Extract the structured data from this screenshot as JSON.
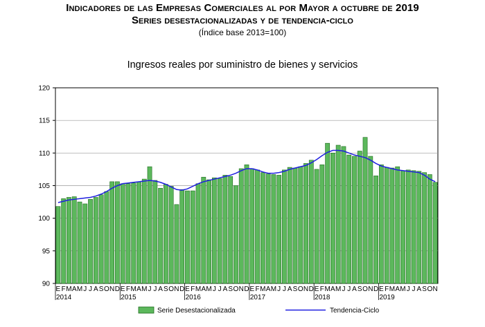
{
  "header": {
    "title": "Indicadores de las Empresas Comerciales al por Mayor a octubre de 2019",
    "subtitle": "Series desestacionalizadas y de tendencia-ciclo",
    "note": "(Índice base 2013=100)"
  },
  "chart_data": {
    "type": "bar",
    "title": "Ingresos reales por suministro de bienes y servicios",
    "xlabel": "",
    "ylabel": "",
    "ylim": [
      90,
      120
    ],
    "yticks": [
      90,
      95,
      100,
      105,
      110,
      115,
      120
    ],
    "month_labels": [
      "E",
      "F",
      "M",
      "A",
      "M",
      "J",
      "J",
      "A",
      "S",
      "O",
      "N",
      "D"
    ],
    "year_labels": [
      "2014",
      "2015",
      "2016",
      "2017",
      "2018",
      "2019"
    ],
    "grid": true,
    "legend_position": "bottom",
    "colors": {
      "bar_fill": "#5cb85c",
      "bar_stroke": "#1f6b1f",
      "trend": "#1f1fe0",
      "grid": "#9a9a9a"
    },
    "series": [
      {
        "name": "Serie Desestacionalizada",
        "type": "bar",
        "values": [
          101.8,
          103.0,
          103.2,
          103.3,
          102.5,
          102.2,
          102.9,
          103.2,
          103.6,
          104.1,
          105.6,
          105.6,
          105.3,
          105.3,
          105.4,
          105.6,
          106.0,
          107.9,
          105.8,
          104.6,
          105.2,
          104.9,
          102.1,
          104.4,
          104.2,
          104.2,
          105.3,
          106.3,
          105.9,
          106.2,
          106.1,
          106.6,
          106.4,
          105.0,
          107.6,
          108.2,
          107.6,
          107.4,
          107.0,
          106.8,
          106.7,
          106.6,
          107.4,
          107.8,
          107.7,
          107.9,
          108.4,
          108.9,
          107.5,
          108.2,
          111.5,
          110.0,
          111.2,
          111.0,
          109.7,
          109.5,
          110.3,
          112.4,
          109.5,
          106.5,
          108.2,
          107.8,
          107.7,
          107.9,
          107.3,
          107.4,
          107.3,
          107.2,
          107.0,
          106.7,
          105.5
        ]
      },
      {
        "name": "Tendencia-Ciclo",
        "type": "line",
        "values": [
          102.4,
          102.6,
          102.8,
          102.9,
          103.0,
          103.1,
          103.2,
          103.4,
          103.7,
          104.1,
          104.6,
          105.0,
          105.3,
          105.4,
          105.5,
          105.6,
          105.7,
          105.8,
          105.7,
          105.5,
          105.2,
          104.8,
          104.4,
          104.3,
          104.5,
          104.9,
          105.3,
          105.6,
          105.8,
          106.0,
          106.2,
          106.4,
          106.6,
          106.9,
          107.3,
          107.6,
          107.6,
          107.4,
          107.1,
          106.9,
          106.9,
          107.0,
          107.2,
          107.5,
          107.7,
          107.9,
          108.1,
          108.5,
          109.0,
          109.6,
          110.1,
          110.4,
          110.4,
          110.3,
          110.0,
          109.7,
          109.5,
          109.3,
          108.9,
          108.4,
          108.0,
          107.8,
          107.6,
          107.4,
          107.3,
          107.2,
          107.1,
          107.0,
          106.6,
          106.0,
          105.6
        ]
      }
    ]
  }
}
